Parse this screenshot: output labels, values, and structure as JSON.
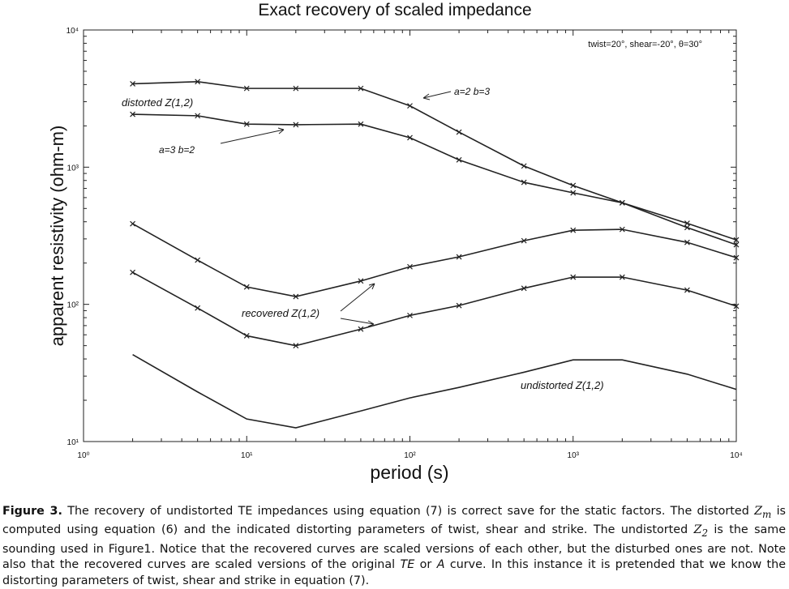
{
  "chart_data": {
    "type": "line",
    "title": "Exact recovery of scaled impedance",
    "x_label": "period (s)",
    "y_label": "apparent resistivity (ohm-m)",
    "x_scale": "log",
    "y_scale": "log",
    "xlim": [
      1,
      10000
    ],
    "ylim": [
      10,
      10000
    ],
    "xticks": [
      {
        "value": 1,
        "label": "10⁰"
      },
      {
        "value": 10,
        "label": "10¹"
      },
      {
        "value": 100,
        "label": "10²"
      },
      {
        "value": 1000,
        "label": "10³"
      },
      {
        "value": 10000,
        "label": "10⁴"
      }
    ],
    "yticks": [
      {
        "value": 10,
        "label": "10¹"
      },
      {
        "value": 100,
        "label": "10²"
      },
      {
        "value": 1000,
        "label": "10³"
      },
      {
        "value": 10000,
        "label": "10⁴"
      }
    ],
    "x": [
      2,
      5,
      10,
      20,
      50,
      100,
      200,
      500,
      1000,
      2000,
      5000,
      10000
    ],
    "series": [
      {
        "name": "a=2 b=3",
        "color": "#222222",
        "markers": true,
        "values": [
          4050,
          4200,
          3750,
          3750,
          3750,
          2800,
          1800,
          1020,
          735,
          550,
          390,
          295
        ]
      },
      {
        "name": "a=3 b=2",
        "color": "#222222",
        "markers": true,
        "values": [
          2430,
          2370,
          2060,
          2040,
          2060,
          1640,
          1130,
          775,
          650,
          550,
          363,
          272
        ]
      },
      {
        "name": "recovered Z(1,2)",
        "color": "#222222",
        "markers": true,
        "values": [
          387,
          210,
          134,
          114,
          148,
          188,
          222,
          291,
          347,
          352,
          283,
          219
        ]
      },
      {
        "name": "recovered Z(1,2)",
        "color": "#222222",
        "markers": true,
        "values": [
          171,
          94,
          59,
          50,
          66,
          83,
          98,
          131,
          158,
          158,
          127,
          97
        ]
      },
      {
        "name": "undistorted Z(1,2)",
        "color": "#222222",
        "markers": false,
        "values": [
          43,
          23,
          14.6,
          12.6,
          16.7,
          20.8,
          24.8,
          32,
          39.4,
          39.4,
          31,
          24
        ]
      }
    ],
    "annotations": [
      "twist=20°, shear=-20°, θ=30°",
      "distorted Z(1,2)",
      "a=2 b=3",
      "a=3 b=2",
      "recovered Z(1,2)",
      "undistorted Z(1,2)"
    ]
  },
  "caption": {
    "label": "Figure 3.",
    "text1": " The recovery of undistorted TE impedances using equation (7) is correct save for the static factors. The distorted ",
    "z1": "Z",
    "sub1": "m",
    "text2": " is computed using equation (6) and the indicated distorting parameters of twist, shear and strike. The undistorted ",
    "z2": "Z",
    "sub2": "2",
    "text3": " is the same sounding used in Figure1. Notice that the recovered curves are scaled versions of each other, but the disturbed ones are not. Note also that the recovered curves are scaled versions of the original ",
    "em1": "TE",
    "text4": " or ",
    "em2": "A",
    "text5": " curve. In this instance it is pretended that we know the distorting parameters of twist, shear and strike in equation (7)."
  }
}
